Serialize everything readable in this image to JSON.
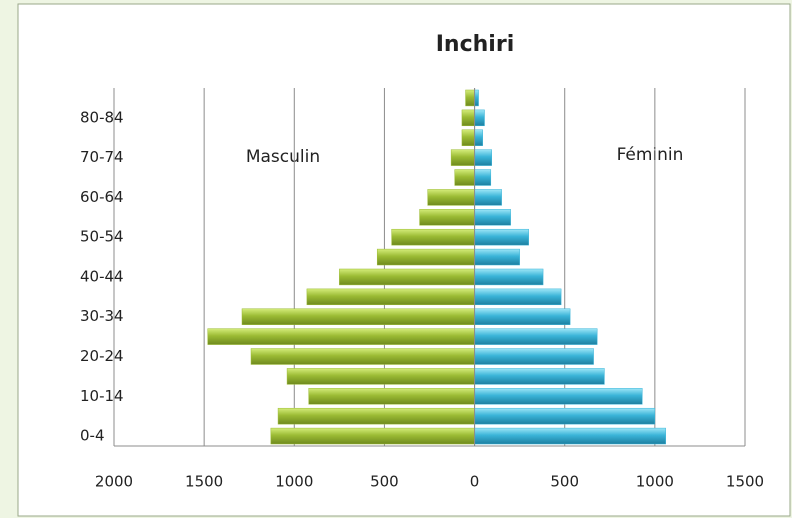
{
  "chart_data": {
    "type": "bar",
    "orientation": "horizontal",
    "title": "Inchiri",
    "categories": [
      "0-4",
      null,
      "10-14",
      null,
      "20-24",
      null,
      "30-34",
      null,
      "40-44",
      null,
      "50-54",
      null,
      "60-64",
      null,
      "70-74",
      null,
      "80-84",
      null
    ],
    "series": [
      {
        "name": "Masculin",
        "color": "#9bbb34",
        "values": [
          -1130,
          -1090,
          -920,
          -1040,
          -1240,
          -1480,
          -1290,
          -930,
          -750,
          -540,
          -460,
          -305,
          -260,
          -110,
          -130,
          -70,
          -70,
          -50
        ]
      },
      {
        "name": "Féminin",
        "color": "#3ab4d8",
        "values": [
          1060,
          1000,
          930,
          720,
          660,
          680,
          530,
          480,
          380,
          250,
          300,
          200,
          150,
          90,
          95,
          45,
          55,
          22
        ]
      }
    ],
    "xlim": [
      -2000,
      1500
    ],
    "xticks": [
      {
        "value": -2000,
        "label": "2000"
      },
      {
        "value": -1500,
        "label": "1500"
      },
      {
        "value": -1000,
        "label": "1000"
      },
      {
        "value": -500,
        "label": "500"
      },
      0,
      500,
      1000,
      1500
    ],
    "grid": true
  }
}
